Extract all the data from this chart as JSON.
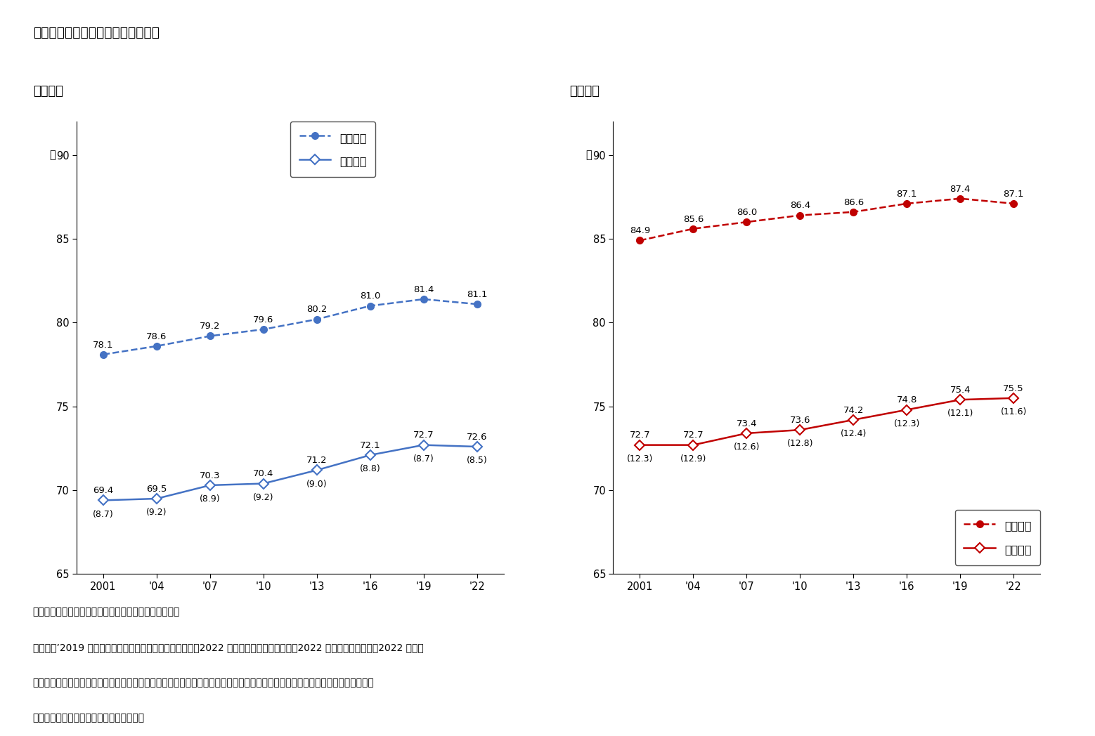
{
  "title": "図表１　平均寿命と健康寿命の推移",
  "male_label": "【男性】",
  "female_label": "【女性】",
  "years": [
    2001,
    2004,
    2007,
    2010,
    2013,
    2016,
    2019,
    2022
  ],
  "year_labels": [
    "2001",
    "'04",
    "'07",
    "'10",
    "'13",
    "'16",
    "'19",
    "'22"
  ],
  "male_avg_life": [
    78.1,
    78.6,
    79.2,
    79.6,
    80.2,
    81.0,
    81.4,
    81.1
  ],
  "male_healthy_life": [
    69.4,
    69.5,
    70.3,
    70.4,
    71.2,
    72.1,
    72.7,
    72.6
  ],
  "male_diff": [
    "8.7",
    "9.2",
    "8.9",
    "9.2",
    "9.0",
    "8.8",
    "8.7",
    "8.5"
  ],
  "female_avg_life": [
    84.9,
    85.6,
    86.0,
    86.4,
    86.6,
    87.1,
    87.4,
    87.1
  ],
  "female_healthy_life": [
    72.7,
    72.7,
    73.4,
    73.6,
    74.2,
    74.8,
    75.4,
    75.5
  ],
  "female_diff": [
    "12.3",
    "12.9",
    "12.6",
    "12.8",
    "12.4",
    "12.3",
    "12.1",
    "11.6"
  ],
  "male_color": "#4472C4",
  "female_color": "#C00000",
  "ylim": [
    65,
    92
  ],
  "yticks": [
    65,
    70,
    75,
    80,
    85,
    90
  ],
  "legend_avg": "平均寿命",
  "legend_healthy": "健康寿命",
  "nen": "年",
  "note1": "（注）　（　）内の数値は、平均寿命と健康寿命の差。",
  "note2": "（資料）’2019 年までの健康寿命は厚生労働省資料より。2022 年健康寿命は厚生労働省「2022 年簡易生命表」と「2022 年国民",
  "note3": "　　　生活基礎調査」を使って、厚生労働科学研究「健康寿命における将来予測と生活習慣病対策の費用対効果に関する研究」に",
  "note4": "　　　よる計算法で筆者が計算したもの。"
}
